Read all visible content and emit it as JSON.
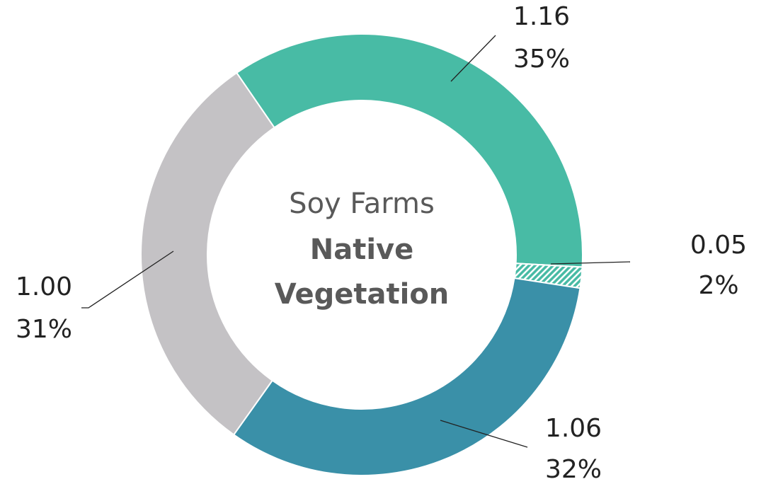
{
  "chart_data": {
    "type": "donut",
    "center_text": "Soy Farms",
    "center_title_lines": [
      "Native",
      "Vegetation"
    ],
    "values": [
      1.16,
      0.05,
      1.06,
      1.0
    ],
    "value_labels": [
      "1.16",
      "0.05",
      "1.06",
      "1.00"
    ],
    "percent_labels": [
      "35%",
      "2%",
      "32%",
      "31%"
    ],
    "colors": [
      "#48bba5",
      "#48bba5",
      "#3a90a8",
      "#c4c2c5"
    ],
    "hatched": [
      false,
      true,
      false,
      false
    ]
  }
}
